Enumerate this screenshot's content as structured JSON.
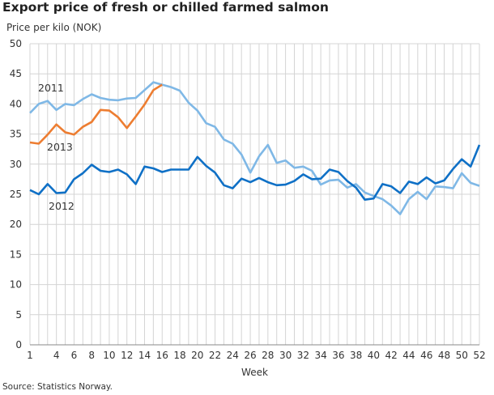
{
  "chart_data": {
    "type": "line",
    "title": "Export price of fresh or chilled farmed salmon",
    "ylabel": "Price per kilo (NOK)",
    "xlabel": "Week",
    "source": "Source: Statistics Norway.",
    "ylim": [
      0,
      50
    ],
    "yticks": [
      0,
      5,
      10,
      15,
      20,
      25,
      30,
      35,
      40,
      45,
      50
    ],
    "xlim": [
      1,
      52
    ],
    "xticks": [
      1,
      4,
      6,
      8,
      10,
      12,
      14,
      16,
      18,
      20,
      22,
      24,
      26,
      28,
      30,
      32,
      34,
      36,
      38,
      40,
      42,
      44,
      46,
      48,
      50,
      52
    ],
    "xticks_labels": [
      "1",
      "4",
      "6",
      "8",
      "10",
      "12",
      "14",
      "16",
      "18",
      "20",
      "22",
      "24",
      "26",
      "28",
      "30",
      "32",
      "34",
      "36",
      "38",
      "40",
      "42",
      "44",
      "46",
      "48",
      "50",
      "52"
    ],
    "grid": true,
    "series": [
      {
        "name": "2011",
        "color": "#7fb8e6",
        "values": [
          38.5,
          40,
          40.5,
          39,
          40,
          39.8,
          40.8,
          41.6,
          41,
          40.7,
          40.6,
          40.9,
          41,
          42.3,
          43.6,
          43.2,
          42.8,
          42.2,
          40.2,
          38.9,
          36.8,
          36.2,
          34.1,
          33.4,
          31.6,
          28.6,
          31.3,
          33.2,
          30.2,
          30.6,
          29.4,
          29.6,
          28.9,
          26.6,
          27.3,
          27.4,
          26.1,
          26.7,
          25.3,
          24.7,
          24.2,
          23.1,
          21.7,
          24.2,
          25.4,
          24.2,
          26.3,
          26.2,
          26,
          28.5,
          26.9,
          26.4
        ]
      },
      {
        "name": "2012",
        "color": "#0f70c6",
        "values": [
          25.7,
          25,
          26.7,
          25.2,
          25.3,
          27.5,
          28.5,
          29.9,
          28.9,
          28.7,
          29.1,
          28.3,
          26.7,
          29.6,
          29.3,
          28.7,
          29.1,
          29.1,
          29.1,
          31.2,
          29.7,
          28.6,
          26.5,
          26,
          27.6,
          27,
          27.7,
          27,
          26.5,
          26.6,
          27.2,
          28.3,
          27.5,
          27.6,
          29.1,
          28.7,
          27.2,
          26.1,
          24.1,
          24.3,
          26.7,
          26.3,
          25.2,
          27.1,
          26.7,
          27.8,
          26.8,
          27.3,
          29.2,
          30.8,
          29.6,
          33.2
        ]
      },
      {
        "name": "2013",
        "color": "#ed7d31",
        "values": [
          33.6,
          33.4,
          34.9,
          36.6,
          35.3,
          34.9,
          36.2,
          37,
          39,
          38.9,
          37.8,
          36,
          37.9,
          39.9,
          42.3,
          43.2
        ]
      }
    ]
  }
}
